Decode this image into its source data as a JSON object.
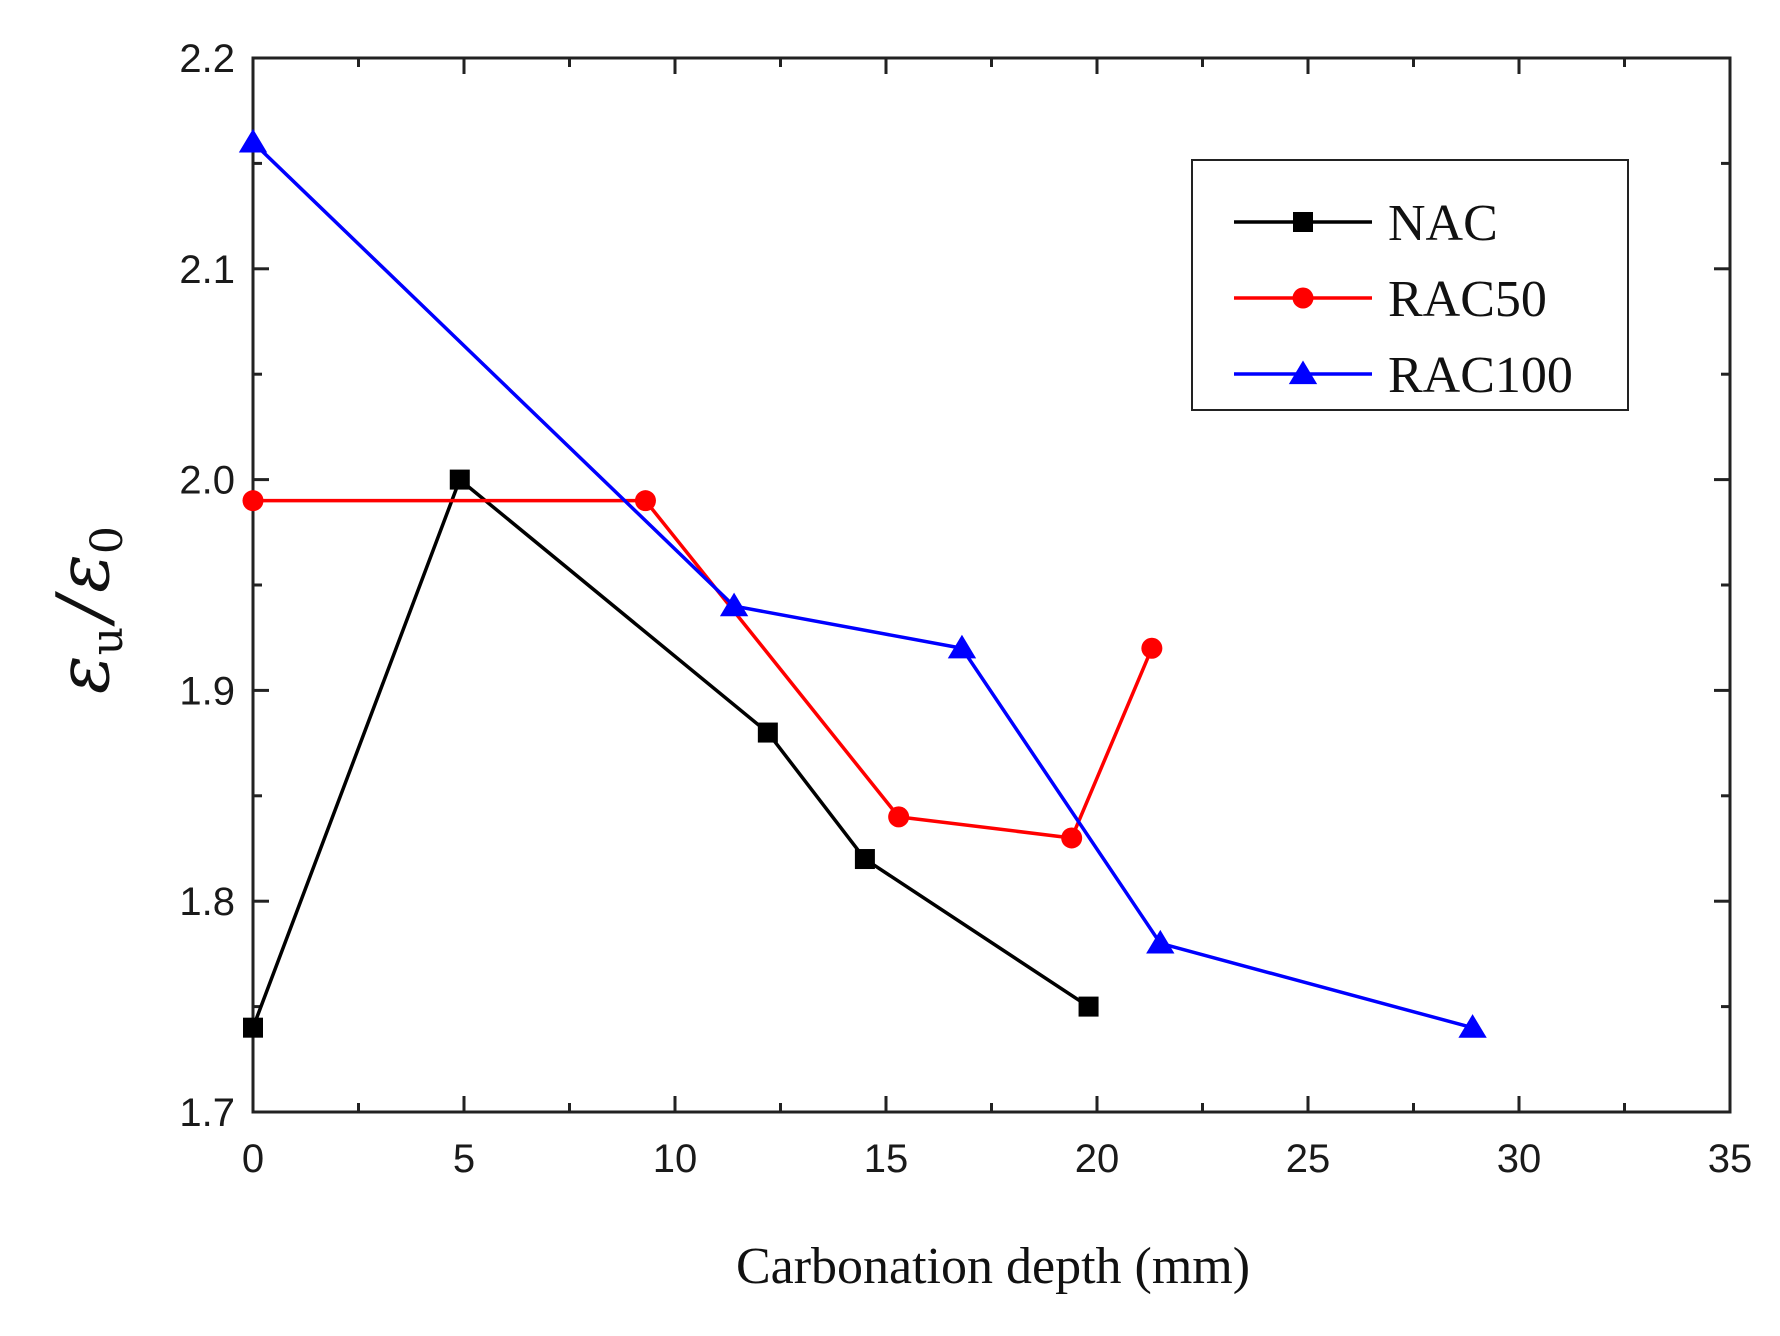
{
  "chart_data": {
    "type": "line",
    "title": "",
    "xlabel": "Carbonation depth (mm)",
    "ylabel": {
      "symbol": "ε",
      "numerator_sub": "u",
      "separator": "/",
      "denominator_sub": "0"
    },
    "xlim": [
      0,
      35
    ],
    "ylim": [
      1.7,
      2.2
    ],
    "x_ticks": [
      0,
      5,
      10,
      15,
      20,
      25,
      30,
      35
    ],
    "x_tick_labels": [
      "0",
      "5",
      "10",
      "15",
      "20",
      "25",
      "30",
      "35"
    ],
    "y_ticks": [
      1.7,
      1.8,
      1.9,
      2.0,
      2.1,
      2.2
    ],
    "y_tick_labels": [
      "1.7",
      "1.8",
      "1.9",
      "2.0",
      "2.1",
      "2.2"
    ],
    "grid": false,
    "legend_position": "top-right",
    "series": [
      {
        "name": "NAC",
        "color": "#000000",
        "marker": "square",
        "x": [
          0,
          4.9,
          12.2,
          14.5,
          19.8
        ],
        "y": [
          1.74,
          2.0,
          1.88,
          1.82,
          1.75
        ]
      },
      {
        "name": "RAC50",
        "color": "#ff0000",
        "marker": "circle",
        "x": [
          0,
          9.3,
          15.3,
          19.4,
          21.3
        ],
        "y": [
          1.99,
          1.99,
          1.84,
          1.83,
          1.92
        ]
      },
      {
        "name": "RAC100",
        "color": "#0000ff",
        "marker": "triangle",
        "x": [
          0,
          11.4,
          16.8,
          21.5,
          28.9
        ],
        "y": [
          2.16,
          1.94,
          1.92,
          1.78,
          1.74
        ]
      }
    ]
  }
}
